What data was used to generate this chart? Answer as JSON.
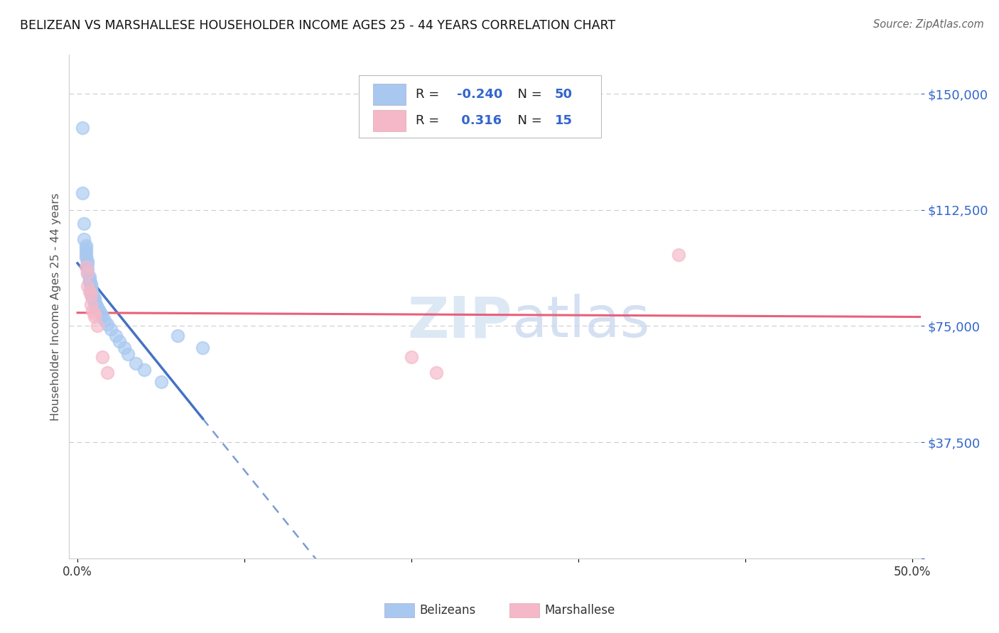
{
  "title": "BELIZEAN VS MARSHALLESE HOUSEHOLDER INCOME AGES 25 - 44 YEARS CORRELATION CHART",
  "source": "Source: ZipAtlas.com",
  "ylabel": "Householder Income Ages 25 - 44 years",
  "xlim": [
    -0.005,
    0.505
  ],
  "ylim": [
    0,
    162500
  ],
  "yticks": [
    0,
    37500,
    75000,
    112500,
    150000
  ],
  "ytick_labels": [
    "",
    "$37,500",
    "$75,000",
    "$112,500",
    "$150,000"
  ],
  "xtick_vals": [
    0.0,
    0.1,
    0.2,
    0.3,
    0.4,
    0.5
  ],
  "xtick_labels": [
    "0.0%",
    "",
    "",
    "",
    "",
    "50.0%"
  ],
  "belizean_color": "#a8c8f0",
  "marshallese_color": "#f5b8c8",
  "belizean_line_color": "#4472c4",
  "marshallese_line_color": "#e8607a",
  "legend_label_color": "#4472c4",
  "legend_r_belizean": "-0.240",
  "legend_n_belizean": "50",
  "legend_r_marshallese": "0.316",
  "legend_n_marshallese": "15",
  "belizean_x": [
    0.003,
    0.003,
    0.004,
    0.004,
    0.005,
    0.005,
    0.005,
    0.005,
    0.005,
    0.006,
    0.006,
    0.006,
    0.006,
    0.007,
    0.007,
    0.007,
    0.007,
    0.008,
    0.008,
    0.008,
    0.008,
    0.008,
    0.008,
    0.009,
    0.009,
    0.009,
    0.009,
    0.01,
    0.01,
    0.01,
    0.01,
    0.011,
    0.011,
    0.012,
    0.012,
    0.013,
    0.014,
    0.015,
    0.016,
    0.018,
    0.02,
    0.023,
    0.025,
    0.028,
    0.03,
    0.035,
    0.04,
    0.05,
    0.06,
    0.075
  ],
  "belizean_y": [
    139000,
    118000,
    108000,
    103000,
    101000,
    100000,
    99000,
    98000,
    97000,
    96000,
    95000,
    93500,
    92000,
    91000,
    90000,
    89500,
    89000,
    88500,
    88000,
    87500,
    87000,
    86500,
    86000,
    85500,
    85000,
    84500,
    84000,
    84000,
    83500,
    83000,
    82500,
    82000,
    81500,
    81000,
    80500,
    80000,
    79000,
    78000,
    77000,
    75500,
    74000,
    72000,
    70000,
    68000,
    66000,
    63000,
    61000,
    57000,
    72000,
    68000
  ],
  "marshallese_x": [
    0.005,
    0.006,
    0.006,
    0.007,
    0.008,
    0.008,
    0.009,
    0.01,
    0.01,
    0.012,
    0.015,
    0.018,
    0.2,
    0.215,
    0.36
  ],
  "marshallese_y": [
    94000,
    92000,
    88000,
    86000,
    85000,
    82000,
    80000,
    79000,
    78000,
    75000,
    65000,
    60000,
    65000,
    60000,
    98000
  ]
}
